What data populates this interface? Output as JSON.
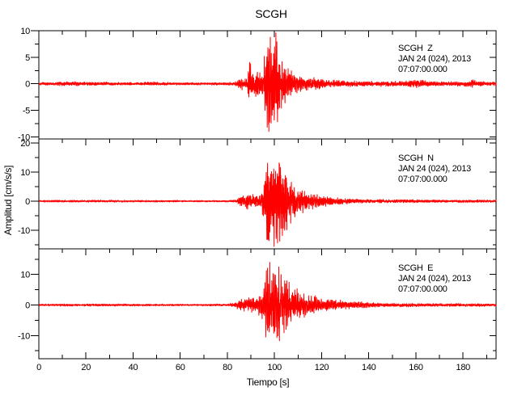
{
  "colors": {
    "trace": "#ff0000",
    "axis": "#000000",
    "background": "#ffffff"
  },
  "chart_data": {
    "type": "line",
    "title": "SCGH",
    "xlabel": "Tiempo [s]",
    "ylabel": "Amplitud [cm/s/s]",
    "x_range": [
      0,
      194
    ],
    "x_major_ticks": [
      0,
      20,
      40,
      60,
      80,
      100,
      120,
      140,
      160,
      180
    ],
    "x_minor_ticks": [
      10,
      30,
      50,
      70,
      90,
      110,
      130,
      150,
      170,
      190
    ],
    "grid": false,
    "legend": "none",
    "panels": [
      {
        "station": "SCGH",
        "component": "Z",
        "annotation_lines": [
          "SCGH  Z",
          "JAN 24 (024), 2013",
          "07:07:00.000"
        ],
        "y_range": [
          -10.4,
          10.0
        ],
        "y_major_ticks": [
          -10,
          -5,
          0,
          5,
          10
        ],
        "y_minor_ticks": [
          -7.5,
          -2.5,
          2.5,
          7.5
        ],
        "clip": [
          -10.8,
          10.0
        ],
        "seed": 7,
        "envelope": [
          [
            0,
            0.18
          ],
          [
            4,
            0.3
          ],
          [
            6,
            0.2
          ],
          [
            9,
            0.35
          ],
          [
            12,
            0.3
          ],
          [
            16,
            0.35
          ],
          [
            20,
            0.25
          ],
          [
            24,
            0.35
          ],
          [
            28,
            0.3
          ],
          [
            34,
            0.25
          ],
          [
            40,
            0.22
          ],
          [
            48,
            0.28
          ],
          [
            55,
            0.22
          ],
          [
            62,
            0.2
          ],
          [
            70,
            0.2
          ],
          [
            78,
            0.22
          ],
          [
            83,
            0.25
          ],
          [
            85,
            0.8
          ],
          [
            87,
            1.0
          ],
          [
            88.5,
            0.7
          ],
          [
            89.4,
            6.2
          ],
          [
            90.2,
            1.6
          ],
          [
            91,
            2.3
          ],
          [
            93,
            2.1
          ],
          [
            95,
            2.6
          ],
          [
            96.5,
            6.5
          ],
          [
            97.6,
            9.6
          ],
          [
            99,
            7.5
          ],
          [
            100,
            9.8
          ],
          [
            101,
            6.5
          ],
          [
            102.5,
            4.5
          ],
          [
            104,
            3.2
          ],
          [
            106,
            2.4
          ],
          [
            109,
            1.7
          ],
          [
            113,
            1.2
          ],
          [
            118,
            0.9
          ],
          [
            124,
            0.65
          ],
          [
            132,
            0.5
          ],
          [
            140,
            0.42
          ],
          [
            150,
            0.4
          ],
          [
            158,
            0.55
          ],
          [
            162,
            0.65
          ],
          [
            166,
            0.4
          ],
          [
            172,
            0.35
          ],
          [
            180,
            0.35
          ],
          [
            184,
            0.7
          ],
          [
            186,
            0.45
          ],
          [
            190,
            0.35
          ],
          [
            194,
            0.3
          ]
        ]
      },
      {
        "station": "SCGH",
        "component": "N",
        "annotation_lines": [
          "SCGH  N",
          "JAN 24 (024), 2013",
          "07:07:00.000"
        ],
        "y_range": [
          -16.4,
          21.4
        ],
        "y_major_ticks": [
          -10,
          0,
          10,
          20
        ],
        "y_minor_ticks": [
          -15,
          -5,
          5,
          15
        ],
        "clip": [
          -17.2,
          20.6
        ],
        "seed": 23,
        "envelope": [
          [
            0,
            0.25
          ],
          [
            8,
            0.35
          ],
          [
            15,
            0.3
          ],
          [
            25,
            0.35
          ],
          [
            35,
            0.3
          ],
          [
            50,
            0.28
          ],
          [
            65,
            0.25
          ],
          [
            80,
            0.28
          ],
          [
            84,
            0.4
          ],
          [
            86,
            1.8
          ],
          [
            88,
            2.3
          ],
          [
            90,
            2.0
          ],
          [
            92,
            1.6
          ],
          [
            94,
            2.2
          ],
          [
            95.5,
            5
          ],
          [
            96.6,
            16
          ],
          [
            97.4,
            20.5
          ],
          [
            98.5,
            13
          ],
          [
            99.5,
            17
          ],
          [
            100.5,
            11
          ],
          [
            101.5,
            14
          ],
          [
            103,
            11
          ],
          [
            104.5,
            12
          ],
          [
            106,
            7
          ],
          [
            108,
            5
          ],
          [
            110.5,
            3.8
          ],
          [
            113,
            3
          ],
          [
            116,
            2.2
          ],
          [
            120,
            1.6
          ],
          [
            125,
            1.1
          ],
          [
            131,
            0.8
          ],
          [
            138,
            0.6
          ],
          [
            146,
            0.5
          ],
          [
            154,
            0.45
          ],
          [
            160,
            0.55
          ],
          [
            166,
            0.4
          ],
          [
            175,
            0.4
          ],
          [
            185,
            0.4
          ],
          [
            194,
            0.35
          ]
        ]
      },
      {
        "station": "SCGH",
        "component": "E",
        "annotation_lines": [
          "SCGH  E",
          "JAN 24 (024), 2013",
          "07:07:00.000"
        ],
        "y_range": [
          -17.6,
          18.4
        ],
        "y_major_ticks": [
          -10,
          0,
          10
        ],
        "y_minor_ticks": [
          -15,
          -5,
          5,
          15
        ],
        "clip": [
          -18.0,
          16.4
        ],
        "seed": 41,
        "envelope": [
          [
            0,
            0.25
          ],
          [
            8,
            0.35
          ],
          [
            15,
            0.3
          ],
          [
            25,
            0.35
          ],
          [
            35,
            0.3
          ],
          [
            50,
            0.28
          ],
          [
            65,
            0.25
          ],
          [
            80,
            0.3
          ],
          [
            83,
            0.6
          ],
          [
            85,
            1.6
          ],
          [
            87,
            2.2
          ],
          [
            89,
            1.9
          ],
          [
            91,
            2.1
          ],
          [
            93,
            2.3
          ],
          [
            95,
            4.5
          ],
          [
            96.3,
            10
          ],
          [
            97.3,
            16
          ],
          [
            98.3,
            11
          ],
          [
            99.3,
            14.5
          ],
          [
            100.5,
            9
          ],
          [
            101.8,
            12
          ],
          [
            103,
            9
          ],
          [
            105,
            8
          ],
          [
            107,
            6
          ],
          [
            109,
            4.8
          ],
          [
            112,
            3.6
          ],
          [
            115,
            3
          ],
          [
            118,
            2.4
          ],
          [
            122,
            1.8
          ],
          [
            127,
            1.3
          ],
          [
            133,
            1
          ],
          [
            140,
            0.7
          ],
          [
            148,
            0.55
          ],
          [
            156,
            0.5
          ],
          [
            165,
            0.45
          ],
          [
            175,
            0.4
          ],
          [
            185,
            0.4
          ],
          [
            194,
            0.35
          ]
        ]
      }
    ]
  }
}
